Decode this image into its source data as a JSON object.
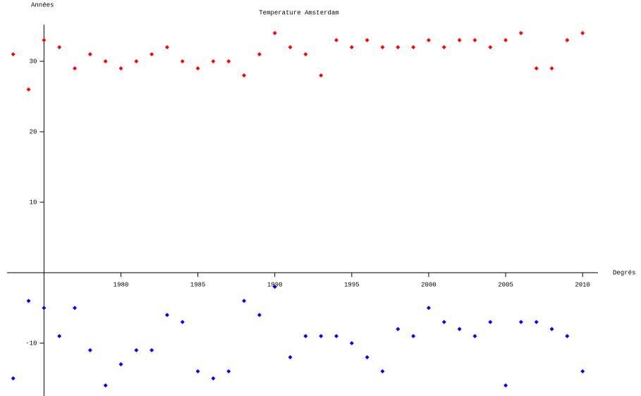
{
  "chart_data": {
    "type": "scatter",
    "title": "Temperature Amsterdam",
    "x_label": "Degrés",
    "y_label": "Années",
    "x": [
      1973,
      1974,
      1975,
      1976,
      1977,
      1978,
      1979,
      1980,
      1981,
      1982,
      1983,
      1984,
      1985,
      1986,
      1987,
      1988,
      1989,
      1990,
      1991,
      1992,
      1993,
      1994,
      1995,
      1996,
      1997,
      1998,
      1999,
      2000,
      2001,
      2002,
      2003,
      2004,
      2005,
      2006,
      2007,
      2008,
      2009,
      2010
    ],
    "series": [
      {
        "color": "#ff0000",
        "values": [
          31,
          26,
          33,
          32,
          29,
          31,
          30,
          29,
          30,
          31,
          32,
          30,
          29,
          30,
          30,
          28,
          31,
          34,
          32,
          31,
          28,
          33,
          32,
          33,
          32,
          32,
          32,
          33,
          32,
          33,
          33,
          32,
          33,
          34,
          29,
          29,
          33,
          34
        ]
      },
      {
        "color": "#0000ff",
        "values": [
          -15,
          -4,
          -5,
          -9,
          -5,
          -11,
          -16,
          -13,
          -11,
          -11,
          -6,
          -7,
          -14,
          -15,
          -14,
          -4,
          -6,
          -2,
          -12,
          -9,
          -9,
          -9,
          -10,
          -12,
          -14,
          -8,
          -9,
          -5,
          -7,
          -8,
          -9,
          -7,
          -16,
          -7,
          -7,
          -8,
          -9,
          -14
        ]
      }
    ],
    "xlim": [
      1972.6,
      2011
    ],
    "ylim": [
      -17.5,
      35.2
    ],
    "xticks": [
      1980,
      1985,
      1990,
      1995,
      2000,
      2005,
      2010
    ],
    "yticks": [
      -10,
      10,
      20,
      30
    ],
    "axes_origin": [
      1975,
      0
    ],
    "grid": false
  }
}
